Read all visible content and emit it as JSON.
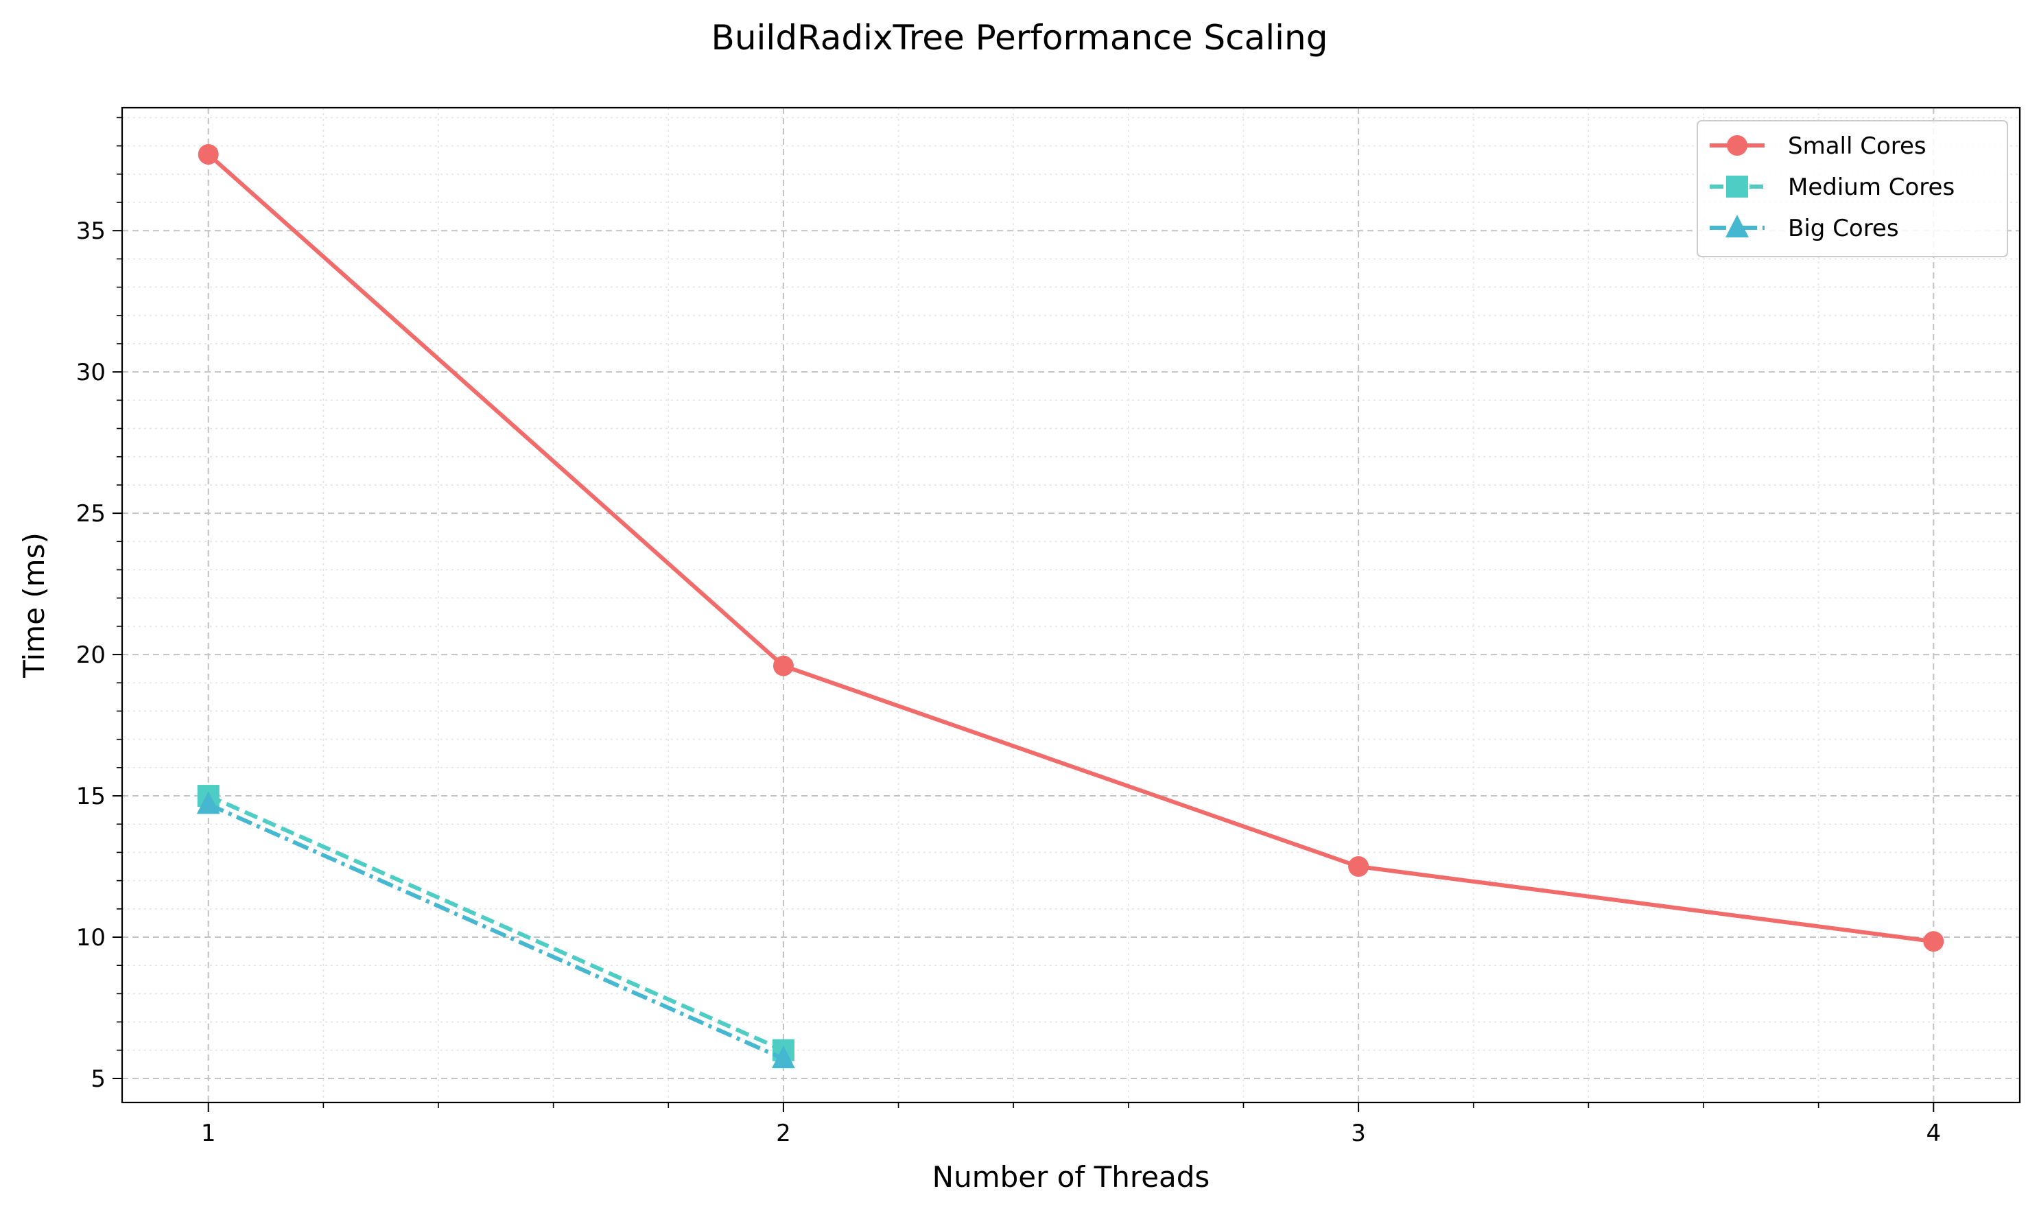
{
  "chart_data": {
    "type": "line",
    "title": "BuildRadixTree Performance Scaling",
    "xlabel": "Number of Threads",
    "ylabel": "Time (ms)",
    "xlim": [
      0.85,
      4.15
    ],
    "ylim": [
      4.15,
      39.35
    ],
    "xticks": [
      1,
      2,
      3,
      4
    ],
    "yticks": [
      5,
      10,
      15,
      20,
      25,
      30,
      35
    ],
    "grid": true,
    "legend": "top-right",
    "series": [
      {
        "name": "Small Cores",
        "x": [
          1,
          2,
          3,
          4
        ],
        "y": [
          37.7,
          19.6,
          12.5,
          9.85
        ],
        "color": "#f26b6b",
        "marker": "circle",
        "linestyle": "solid"
      },
      {
        "name": "Medium Cores",
        "x": [
          1,
          2
        ],
        "y": [
          15.0,
          6.0
        ],
        "color": "#4ecdc4",
        "marker": "square",
        "linestyle": "dashed"
      },
      {
        "name": "Big Cores",
        "x": [
          1,
          2
        ],
        "y": [
          14.7,
          5.7
        ],
        "color": "#45b7d1",
        "marker": "triangle",
        "linestyle": "dashdot"
      }
    ]
  }
}
